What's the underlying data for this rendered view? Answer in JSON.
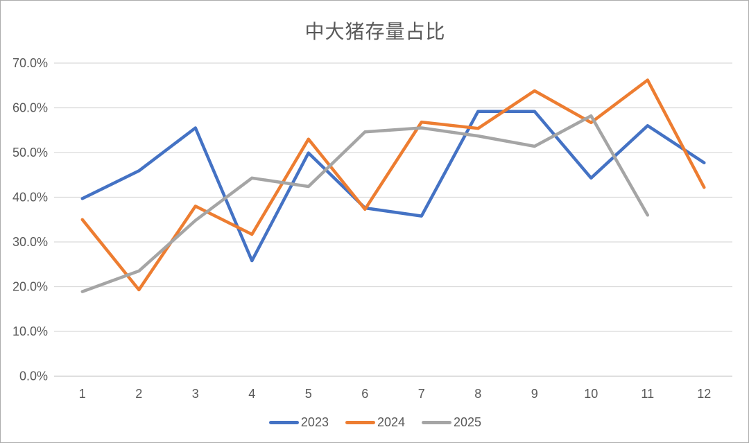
{
  "window": {
    "background": "#ffffff",
    "border_color": "#ababab"
  },
  "chart_data": {
    "type": "line",
    "title": "中大猪存量占比",
    "categories": [
      "1",
      "2",
      "3",
      "4",
      "5",
      "6",
      "7",
      "8",
      "9",
      "10",
      "11",
      "12"
    ],
    "series": [
      {
        "name": "2023",
        "color": "#4472C4",
        "values": [
          39.7,
          45.9,
          55.5,
          25.8,
          49.9,
          37.6,
          35.8,
          59.2,
          59.2,
          44.3,
          56.0,
          47.7
        ]
      },
      {
        "name": "2024",
        "color": "#ED7D31",
        "values": [
          35.0,
          19.3,
          38.0,
          31.7,
          53.0,
          37.3,
          56.8,
          55.4,
          63.8,
          56.7,
          66.2,
          42.2
        ]
      },
      {
        "name": "2025",
        "color": "#A5A5A5",
        "values": [
          18.9,
          23.5,
          34.8,
          44.3,
          42.4,
          54.6,
          55.5,
          53.7,
          51.4,
          58.2,
          36.0,
          null
        ]
      }
    ],
    "xlabel": "",
    "ylabel": "",
    "ylim": [
      0,
      70
    ],
    "ytick_step": 10,
    "y_tick_labels": [
      "0.0%",
      "10.0%",
      "20.0%",
      "30.0%",
      "40.0%",
      "50.0%",
      "60.0%",
      "70.0%"
    ],
    "grid": true,
    "legend_position": "bottom",
    "styles": {
      "title_color": "#595959",
      "axis_text_color": "#595959",
      "gridline_color": "#D9D9D9",
      "axis_line_color": "#BFBFBF",
      "line_width": 4.5
    }
  }
}
